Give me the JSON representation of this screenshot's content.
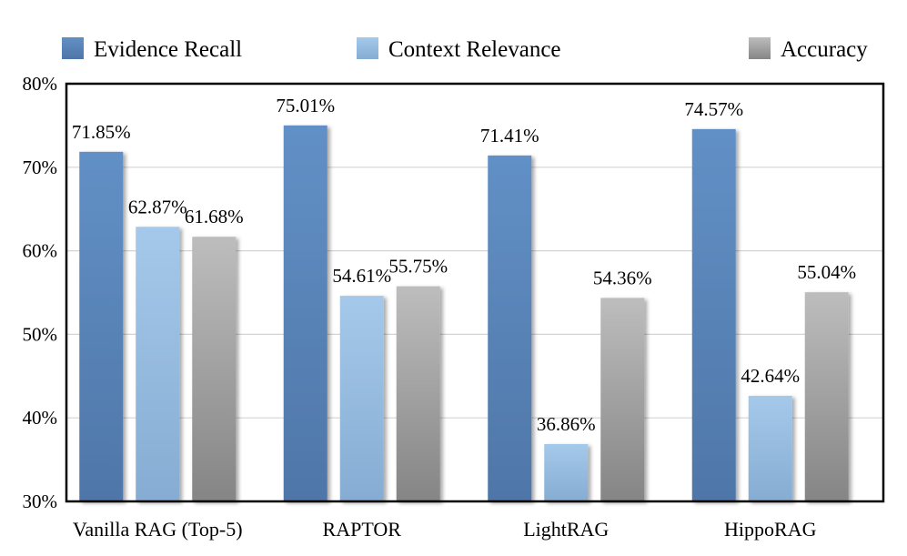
{
  "chart_data": {
    "type": "bar",
    "title": "",
    "xlabel": "",
    "ylabel": "",
    "ylim": [
      30,
      80
    ],
    "yticks": [
      30,
      40,
      50,
      60,
      70,
      80
    ],
    "ytick_labels": [
      "30%",
      "40%",
      "50%",
      "60%",
      "70%",
      "80%"
    ],
    "grid": true,
    "legend_position": "top",
    "categories": [
      "Vanilla RAG (Top-5)",
      "RAPTOR",
      "LightRAG",
      "HippoRAG"
    ],
    "series": [
      {
        "name": "Evidence Recall",
        "color": "#5b84b9",
        "values": [
          71.85,
          75.01,
          71.41,
          74.57
        ],
        "labels": [
          "71.85%",
          "75.01%",
          "71.41%",
          "74.57%"
        ]
      },
      {
        "name": "Context Relevance",
        "color": "#97bde0",
        "values": [
          62.87,
          54.61,
          36.86,
          42.64
        ],
        "labels": [
          "62.87%",
          "54.61%",
          "36.86%",
          "42.64%"
        ]
      },
      {
        "name": "Accuracy",
        "color": "#a6a6a6",
        "values": [
          61.68,
          55.75,
          54.36,
          55.04
        ],
        "labels": [
          "61.68%",
          "55.75%",
          "54.36%",
          "55.04%"
        ]
      }
    ]
  }
}
